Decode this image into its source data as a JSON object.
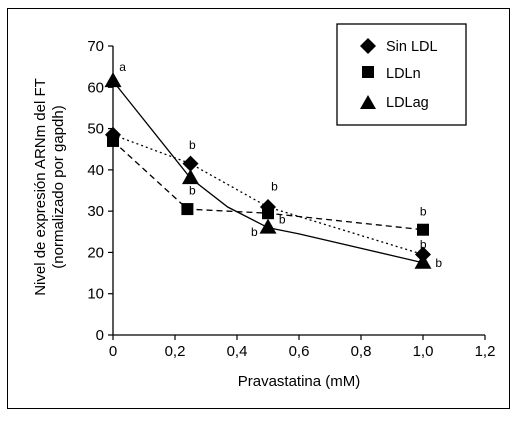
{
  "chart_data": {
    "type": "line",
    "xlabel": "Pravastatina (mM)",
    "ylabel_lines": [
      "Nivel de expresión ARNm del FT",
      "(normalizado por gapdh)"
    ],
    "xlim": [
      0,
      1.2
    ],
    "ylim": [
      0,
      70
    ],
    "x_ticks": [
      0,
      0.2,
      0.4,
      0.6,
      0.8,
      1.0,
      1.2
    ],
    "x_tick_labels": [
      "0",
      "0,2",
      "0,4",
      "0,6",
      "0,8",
      "1,0",
      "1,2"
    ],
    "y_ticks": [
      0,
      10,
      20,
      30,
      40,
      50,
      60,
      70
    ],
    "y_tick_labels": [
      "0",
      "10",
      "20",
      "30",
      "40",
      "50",
      "60",
      "70"
    ],
    "grid": false,
    "legend_position": "top-right",
    "series": [
      {
        "name": "Sin LDL",
        "marker": "diamond",
        "line": "dotted",
        "x": [
          0,
          0.25,
          0.5,
          1.0
        ],
        "y": [
          48.5,
          41.5,
          31,
          19.5
        ]
      },
      {
        "name": "LDLn",
        "marker": "square",
        "line": "dashed",
        "x": [
          0,
          0.24,
          0.5,
          1.0
        ],
        "y": [
          47,
          30.5,
          29.5,
          25.5
        ]
      },
      {
        "name": "LDLag",
        "marker": "triangle",
        "line": "solid",
        "curve_x": [
          0,
          0.25,
          0.37,
          0.5,
          0.6,
          1.0
        ],
        "curve_y": [
          61.5,
          38,
          31,
          26,
          24.5,
          17.5
        ],
        "x": [
          0,
          0.25,
          0.5,
          1.0
        ],
        "y": [
          61.5,
          38,
          26,
          17.5
        ]
      }
    ],
    "annotations": [
      {
        "text": "a",
        "x": 0.02,
        "y": 64
      },
      {
        "text": "b",
        "x": 0.245,
        "y": 45
      },
      {
        "text": "b",
        "x": 0.245,
        "y": 34
      },
      {
        "text": "b",
        "x": 0.51,
        "y": 35
      },
      {
        "text": "b",
        "x": 0.445,
        "y": 24
      },
      {
        "text": "b",
        "x": 0.535,
        "y": 27
      },
      {
        "text": "b",
        "x": 0.99,
        "y": 29
      },
      {
        "text": "b",
        "x": 0.99,
        "y": 21
      },
      {
        "text": "b",
        "x": 1.04,
        "y": 16.5
      }
    ]
  }
}
